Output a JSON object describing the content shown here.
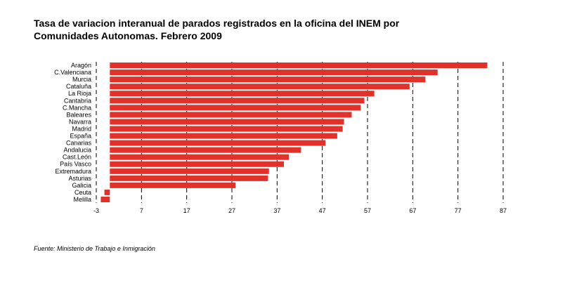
{
  "chart_data": {
    "type": "bar",
    "orientation": "horizontal",
    "title_lines": [
      "Tasa de variacion interanual de parados registrados en la oficina del INEM por",
      "Comunidades Autonomas. Febrero 2009"
    ],
    "categories": [
      "Aragón",
      "C.Valenciana",
      "Murcia",
      "Cataluña",
      "La Rioja",
      "Cantabria",
      "C.Mancha",
      "Baleares",
      "Navarra",
      "Madrid",
      "España",
      "Canarias",
      "Andalucia",
      "Cast.León",
      "País Vasco",
      "Extremadura",
      "Asturias",
      "Galicia",
      "Ceuta",
      "Melilla"
    ],
    "values": [
      83.5,
      72.5,
      69.8,
      66.3,
      58.5,
      56.3,
      55.5,
      53.5,
      51.8,
      51.5,
      50.3,
      47.7,
      42.3,
      39.6,
      38.5,
      35.2,
      35.0,
      27.8,
      -1.2,
      -2.0
    ],
    "xlim": [
      -3,
      87
    ],
    "xticks": [
      -3,
      7,
      17,
      27,
      37,
      47,
      57,
      67,
      77,
      87
    ],
    "grid": "dashed vertical",
    "bar_color": "#e0322a",
    "legend": "none"
  },
  "source": "Fuente: Ministerio de Trabajo e Inmigración"
}
